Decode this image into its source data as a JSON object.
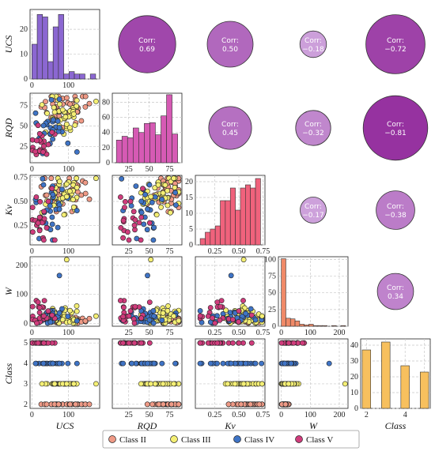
{
  "chart_data": {
    "type": "scatter-matrix",
    "variables": [
      "UCS",
      "RQD",
      "Kv",
      "W",
      "Class"
    ],
    "variable_labels": {
      "UCS": "UCS",
      "RQD": "RQD",
      "Kv": "Kv",
      "W": "W",
      "Class": "Class"
    },
    "ranges": {
      "UCS": [
        -5,
        185
      ],
      "RQD": [
        5,
        90
      ],
      "Kv": [
        0.05,
        0.77
      ],
      "W": [
        -10,
        230
      ],
      "Class": [
        1.8,
        5.2
      ]
    },
    "ticks": {
      "UCS": [
        0,
        100
      ],
      "RQD": [
        25,
        50,
        75
      ],
      "Kv": [
        0.25,
        0.5,
        0.75
      ],
      "W": [
        0,
        100,
        200
      ],
      "Class": [
        2,
        3,
        4,
        5
      ]
    },
    "tick_labels": {
      "UCS": [
        "0",
        "100"
      ],
      "RQD": [
        "25",
        "50",
        "75"
      ],
      "Kv": [
        "0.25",
        "0.50",
        "0.75"
      ],
      "W": [
        "0",
        "100",
        "200"
      ],
      "Class": [
        "2",
        "3",
        "4",
        "5"
      ],
      "UCS_hist_y": [
        "0",
        "10",
        "20"
      ],
      "RQD_hist_y": [
        "0",
        "20",
        "40",
        "60",
        "80"
      ],
      "Kv_hist_y": [
        "0",
        "5",
        "10",
        "15",
        "20"
      ],
      "W_hist_y": [
        "0",
        "25",
        "50",
        "75",
        "100"
      ],
      "Class_hist_y": [
        "0",
        "10",
        "20",
        "30",
        "40"
      ],
      "Class_hist_x": [
        "2",
        "4"
      ],
      "RQD_hist_x": [
        "25",
        "50",
        "75"
      ]
    },
    "correlations": [
      {
        "row": 0,
        "col": 1,
        "label": "Corr:",
        "value": "0.69",
        "r": 0.69
      },
      {
        "row": 0,
        "col": 2,
        "label": "Corr:",
        "value": "0.50",
        "r": 0.5
      },
      {
        "row": 0,
        "col": 3,
        "label": "Corr:",
        "value": "−0.18",
        "r": -0.18
      },
      {
        "row": 0,
        "col": 4,
        "label": "Corr:",
        "value": "−0.72",
        "r": -0.72
      },
      {
        "row": 1,
        "col": 2,
        "label": "Corr:",
        "value": "0.45",
        "r": 0.45
      },
      {
        "row": 1,
        "col": 3,
        "label": "Corr:",
        "value": "−0.32",
        "r": -0.32
      },
      {
        "row": 1,
        "col": 4,
        "label": "Corr:",
        "value": "−0.81",
        "r": -0.81
      },
      {
        "row": 2,
        "col": 3,
        "label": "Corr:",
        "value": "−0.17",
        "r": -0.17
      },
      {
        "row": 2,
        "col": 4,
        "label": "Corr:",
        "value": "−0.38",
        "r": -0.38
      },
      {
        "row": 3,
        "col": 4,
        "label": "Corr:",
        "value": "0.34",
        "r": 0.34
      }
    ],
    "histograms": {
      "UCS": {
        "edges": [
          0,
          14.5,
          29,
          43.5,
          58,
          72.5,
          87,
          101.5,
          116,
          130.5,
          145,
          159.5,
          174
        ],
        "counts": [
          14,
          26,
          25,
          7,
          21,
          26,
          2,
          3,
          2,
          2,
          0,
          2
        ],
        "ylim": [
          0,
          28
        ],
        "ticks": [
          0,
          10,
          20
        ]
      },
      "RQD": {
        "edges": [
          10,
          16.8,
          23.6,
          30.4,
          37.2,
          44,
          50.8,
          57.6,
          64.4,
          71.2,
          78,
          84.8
        ],
        "counts": [
          30,
          35,
          33,
          46,
          40,
          52,
          53,
          37,
          62,
          90,
          38
        ],
        "ylim": [
          0,
          92
        ],
        "ticks": [
          0,
          20,
          40,
          60,
          80
        ]
      },
      "Kv": {
        "edges": [
          0.1,
          0.152,
          0.204,
          0.256,
          0.308,
          0.36,
          0.412,
          0.464,
          0.516,
          0.568,
          0.62,
          0.672,
          0.724
        ],
        "counts": [
          2,
          4,
          5,
          6,
          14,
          14,
          18,
          11,
          18,
          19,
          18,
          21
        ],
        "ylim": [
          0,
          22
        ],
        "ticks": [
          0,
          5,
          10,
          15,
          20
        ]
      },
      "W": {
        "edges": [
          0,
          15.8,
          31.6,
          47.4,
          63.2,
          79,
          94.8,
          110.6,
          126.4,
          142.2,
          158,
          173.8,
          189.6,
          205.4,
          221.2
        ],
        "counts": [
          101,
          12,
          11,
          8,
          3,
          2,
          3,
          1,
          1,
          1,
          0,
          1,
          0,
          1
        ],
        "ylim": [
          0,
          104
        ],
        "ticks": [
          0,
          25,
          50,
          75,
          100
        ]
      },
      "Class": {
        "categories": [
          2,
          3,
          4,
          5
        ],
        "counts": [
          37,
          42,
          27,
          23
        ],
        "xlim": [
          1.7,
          5.3
        ],
        "ylim": [
          0,
          44
        ],
        "ticks": [
          0,
          10,
          20,
          30,
          40
        ]
      }
    },
    "legend": {
      "placement": "bottom-center",
      "entries": [
        {
          "label": "Class II",
          "color": "#ef9a86"
        },
        {
          "label": "Class III",
          "color": "#f4ef74"
        },
        {
          "label": "Class IV",
          "color": "#3f74c6"
        },
        {
          "label": "Class V",
          "color": "#d03c7c"
        }
      ]
    },
    "colors": {
      "UCS_hist": "#8b67d1",
      "RQD_hist": "#d65ab4",
      "Kv_hist": "#f0627c",
      "W_hist": "#f08a68",
      "Class_hist": "#f7c05e",
      "corr_pos_strong": "#9b3aa8",
      "corr_weak": "#d6b5e4"
    },
    "grid": true
  }
}
